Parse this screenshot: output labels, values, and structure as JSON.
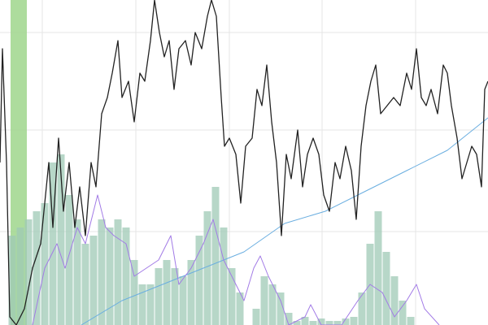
{
  "chart_data": {
    "type": "line",
    "xlim": [
      0,
      600
    ],
    "ylim": [
      0,
      400
    ],
    "xticks": [
      52,
      167,
      282,
      396,
      511
    ],
    "yticks": [
      115,
      240,
      360
    ],
    "grid": true,
    "highlight": [
      13,
      33
    ],
    "highlight_color": "#9fd68c",
    "series": [
      {
        "kind": "bar",
        "color": "#9fc9b5",
        "x": [
          15,
          25,
          35,
          45,
          55,
          65,
          75,
          85,
          95,
          105,
          115,
          125,
          135,
          145,
          155,
          165,
          175,
          185,
          195,
          205,
          215,
          225,
          235,
          245,
          255,
          265,
          275,
          285,
          295,
          305,
          315,
          325,
          335,
          345,
          355,
          365,
          375,
          385,
          395,
          405,
          415,
          425,
          435,
          445,
          455,
          465,
          475,
          485,
          495,
          505
        ],
        "values": [
          110,
          120,
          130,
          140,
          150,
          200,
          210,
          160,
          130,
          100,
          110,
          130,
          120,
          130,
          120,
          80,
          50,
          50,
          70,
          80,
          70,
          60,
          80,
          110,
          140,
          170,
          120,
          70,
          40,
          0,
          20,
          60,
          50,
          40,
          15,
          5,
          10,
          5,
          8,
          5,
          5,
          8,
          10,
          40,
          100,
          140,
          90,
          60,
          30,
          10
        ]
      },
      {
        "kind": "line",
        "color": "#6aaee0",
        "x": [
          100,
          150,
          200,
          250,
          300,
          350,
          400,
          450,
          500,
          550,
          600
        ],
        "values": [
          0,
          30,
          50,
          70,
          90,
          125,
          140,
          165,
          190,
          215,
          255
        ]
      },
      {
        "kind": "line",
        "color": "#a27be6",
        "x": [
          40,
          55,
          70,
          80,
          95,
          105,
          120,
          130,
          140,
          155,
          165,
          180,
          195,
          210,
          220,
          235,
          250,
          262,
          275,
          290,
          300,
          312,
          320,
          330,
          345,
          355,
          375,
          382,
          395,
          420,
          440,
          455,
          470,
          485,
          500,
          512,
          522,
          540
        ],
        "values": [
          0,
          70,
          100,
          70,
          120,
          100,
          160,
          120,
          110,
          100,
          60,
          70,
          80,
          110,
          50,
          70,
          100,
          130,
          80,
          50,
          30,
          70,
          85,
          60,
          30,
          0,
          10,
          25,
          0,
          0,
          30,
          50,
          40,
          10,
          30,
          50,
          20,
          0
        ]
      },
      {
        "kind": "line",
        "color": "#222222",
        "x": [
          0,
          3,
          8,
          12,
          20,
          30,
          40,
          50,
          60,
          65,
          72,
          78,
          85,
          92,
          98,
          105,
          112,
          118,
          125,
          132,
          138,
          145,
          150,
          158,
          165,
          172,
          178,
          185,
          190,
          196,
          202,
          208,
          214,
          220,
          228,
          235,
          240,
          248,
          255,
          260,
          266,
          272,
          276,
          282,
          290,
          296,
          302,
          310,
          316,
          322,
          328,
          334,
          340,
          346,
          352,
          358,
          366,
          372,
          378,
          385,
          392,
          398,
          405,
          412,
          418,
          425,
          432,
          438,
          444,
          450,
          456,
          462,
          468,
          476,
          484,
          492,
          500,
          506,
          512,
          518,
          524,
          530,
          538,
          545,
          550,
          555,
          562,
          568,
          574,
          580,
          586,
          592,
          596,
          600
        ],
        "values": [
          200,
          340,
          200,
          10,
          0,
          20,
          70,
          100,
          200,
          120,
          230,
          140,
          200,
          120,
          170,
          110,
          200,
          170,
          260,
          280,
          310,
          350,
          280,
          300,
          250,
          310,
          300,
          350,
          400,
          360,
          330,
          350,
          290,
          340,
          350,
          320,
          360,
          340,
          380,
          400,
          380,
          280,
          220,
          230,
          210,
          150,
          220,
          230,
          290,
          270,
          320,
          250,
          200,
          110,
          210,
          180,
          240,
          170,
          210,
          230,
          210,
          160,
          140,
          200,
          180,
          220,
          190,
          130,
          220,
          270,
          300,
          320,
          260,
          270,
          280,
          270,
          310,
          290,
          340,
          280,
          270,
          290,
          260,
          320,
          310,
          270,
          230,
          180,
          200,
          220,
          210,
          170,
          290,
          300
        ]
      }
    ]
  }
}
